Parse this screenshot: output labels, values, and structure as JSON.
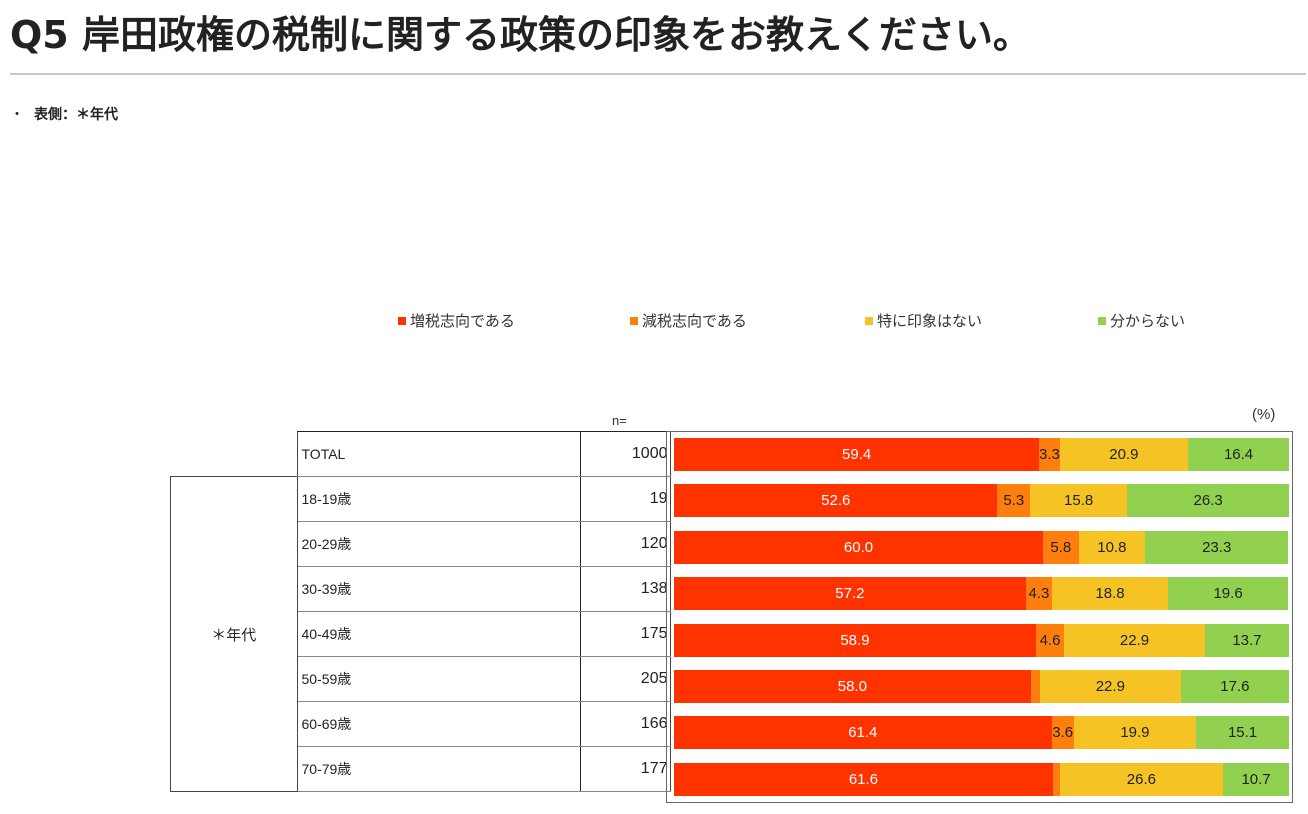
{
  "header": {
    "title": "Q5 岸田政権の税制に関する政策の印象をお教えください。",
    "side_note_bullet": "・",
    "side_note": "表側：＊年代"
  },
  "legend": [
    {
      "label": "増税志向である",
      "color": "#ff3300"
    },
    {
      "label": "減税志向である",
      "color": "#ff7f0e"
    },
    {
      "label": "特に印象はない",
      "color": "#f5c324"
    },
    {
      "label": "分からない",
      "color": "#92d050"
    }
  ],
  "table": {
    "n_header": "n=",
    "unit_label": "(%)",
    "group_label": "＊年代",
    "rows": [
      {
        "label": "TOTAL",
        "n": "1000"
      },
      {
        "label": "18-19歳",
        "n": "19"
      },
      {
        "label": "20-29歳",
        "n": "120"
      },
      {
        "label": "30-39歳",
        "n": "138"
      },
      {
        "label": "40-49歳",
        "n": "175"
      },
      {
        "label": "50-59歳",
        "n": "205"
      },
      {
        "label": "60-69歳",
        "n": "166"
      },
      {
        "label": "70-79歳",
        "n": "177"
      }
    ]
  },
  "chart_data": {
    "type": "bar",
    "orientation": "horizontal",
    "stacked": "100%",
    "title": "Q5 岸田政権の税制に関する政策の印象をお教えください。",
    "xlabel": "",
    "ylabel": "",
    "unit": "%",
    "legend_position": "top",
    "categories": [
      "TOTAL",
      "18-19歳",
      "20-29歳",
      "30-39歳",
      "40-49歳",
      "50-59歳",
      "60-69歳",
      "70-79歳"
    ],
    "n": [
      1000,
      19,
      120,
      138,
      175,
      205,
      166,
      177
    ],
    "series": [
      {
        "name": "増税志向である",
        "color": "#ff3300",
        "values": [
          59.4,
          52.6,
          60.0,
          57.2,
          58.9,
          58.0,
          61.4,
          61.6
        ]
      },
      {
        "name": "減税志向である",
        "color": "#ff7f0e",
        "values": [
          3.3,
          5.3,
          5.8,
          4.3,
          4.6,
          1.5,
          3.6,
          1.1
        ]
      },
      {
        "name": "特に印象はない",
        "color": "#f5c324",
        "values": [
          20.9,
          15.8,
          10.8,
          18.8,
          22.9,
          22.9,
          19.9,
          26.6
        ]
      },
      {
        "name": "分からない",
        "color": "#92d050",
        "values": [
          16.4,
          26.3,
          23.3,
          19.6,
          13.7,
          17.6,
          15.1,
          10.7
        ]
      }
    ],
    "labels": [
      [
        "59.4",
        "3.3",
        "20.9",
        "16.4"
      ],
      [
        "52.6",
        "5.3",
        "15.8",
        "26.3"
      ],
      [
        "60.0",
        "5.8",
        "10.8",
        "23.3"
      ],
      [
        "57.2",
        "4.3",
        "18.8",
        "19.6"
      ],
      [
        "58.9",
        "4.6",
        "22.9",
        "13.7"
      ],
      [
        "58.0",
        "",
        "22.9",
        "17.6"
      ],
      [
        "61.4",
        "3.6",
        "19.9",
        "15.1"
      ],
      [
        "61.6",
        "",
        "26.6",
        "10.7"
      ]
    ],
    "xlim": [
      0,
      100
    ],
    "grid": false
  }
}
